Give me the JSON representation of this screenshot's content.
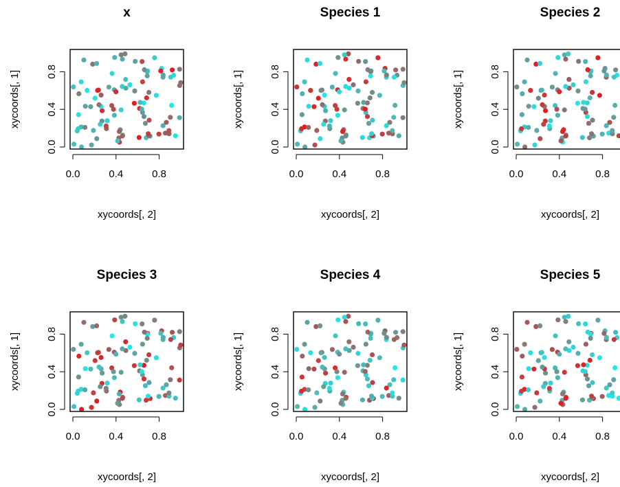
{
  "figure": {
    "layout": "2 rows x 3 columns",
    "xlabel": "xycoords[, 2]",
    "ylabel": "xycoords[, 1]",
    "xticks": [
      "0.0",
      "0.4",
      "0.8"
    ],
    "yticks": [
      "0.0",
      "0.4",
      "0.8"
    ],
    "colors": {
      "high": "#e8181a",
      "mid": "#6f8f8f",
      "low": "#22e8e8"
    }
  },
  "chart_data": [
    {
      "type": "scatter",
      "title": "x",
      "xlim": [
        0,
        1
      ],
      "ylim": [
        0,
        1
      ],
      "seed": 11
    },
    {
      "type": "scatter",
      "title": "Species 1",
      "xlim": [
        0,
        1
      ],
      "ylim": [
        0,
        1
      ],
      "seed": 23
    },
    {
      "type": "scatter",
      "title": "Species 2",
      "xlim": [
        0,
        1
      ],
      "ylim": [
        0,
        1
      ],
      "seed": 37
    },
    {
      "type": "scatter",
      "title": "Species 3",
      "xlim": [
        0,
        1
      ],
      "ylim": [
        0,
        1
      ],
      "seed": 41
    },
    {
      "type": "scatter",
      "title": "Species 4",
      "xlim": [
        0,
        1
      ],
      "ylim": [
        0,
        1
      ],
      "seed": 53
    },
    {
      "type": "scatter",
      "title": "Species 5",
      "xlim": [
        0,
        1
      ],
      "ylim": [
        0,
        1
      ],
      "seed": 67
    }
  ]
}
